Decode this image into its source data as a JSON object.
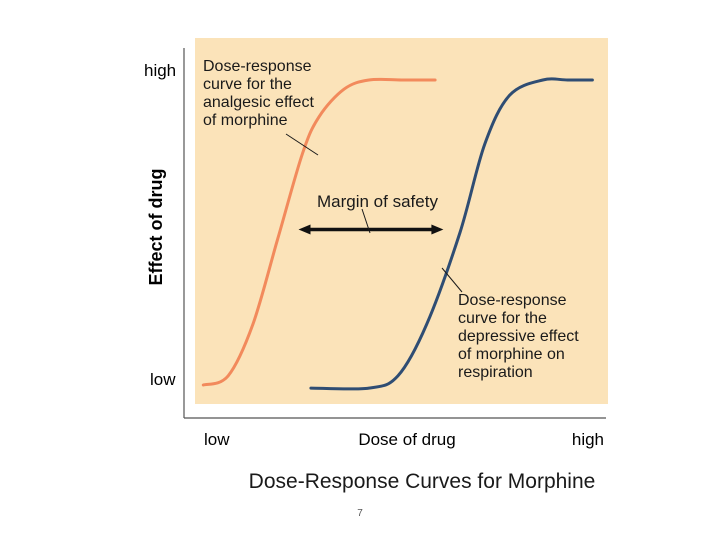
{
  "chart_data": {
    "type": "line",
    "title": "Dose-Response Curves for Morphine",
    "xlabel": "Dose of drug",
    "ylabel": "Effect of drug",
    "x_tick_labels": [
      "low",
      "high"
    ],
    "y_tick_labels": [
      "low",
      "high"
    ],
    "xlim": [
      0,
      100
    ],
    "ylim": [
      0,
      100
    ],
    "grid": false,
    "colors": {
      "background": "#fbe3b9",
      "analgesic": "#f28a5c",
      "respiration": "#2f4d73",
      "arrow": "#111111",
      "text": "#1a1a1a"
    },
    "series": [
      {
        "label_lines": [
          "Dose-response",
          "curve for the",
          "analgesic effect",
          "of morphine"
        ],
        "x": [
          2,
          8,
          14,
          20,
          26,
          30,
          36,
          42,
          50,
          58
        ],
        "y": [
          0,
          3,
          20,
          48,
          76,
          88,
          97,
          100,
          100,
          100
        ]
      },
      {
        "label_lines": [
          "Dose-response",
          "curve for the",
          "depressive effect",
          "of morphine on",
          "respiration"
        ],
        "x": [
          28,
          42,
          49,
          56,
          64,
          70,
          76,
          84,
          90,
          96
        ],
        "y": [
          -1,
          -1,
          3,
          20,
          50,
          79,
          95,
          100,
          100,
          100
        ]
      }
    ],
    "annotations": [
      {
        "type": "double-arrow",
        "text": "Margin of safety",
        "x_from": 25,
        "x_to": 60,
        "y": 51
      }
    ]
  },
  "page": {
    "number": "7"
  }
}
